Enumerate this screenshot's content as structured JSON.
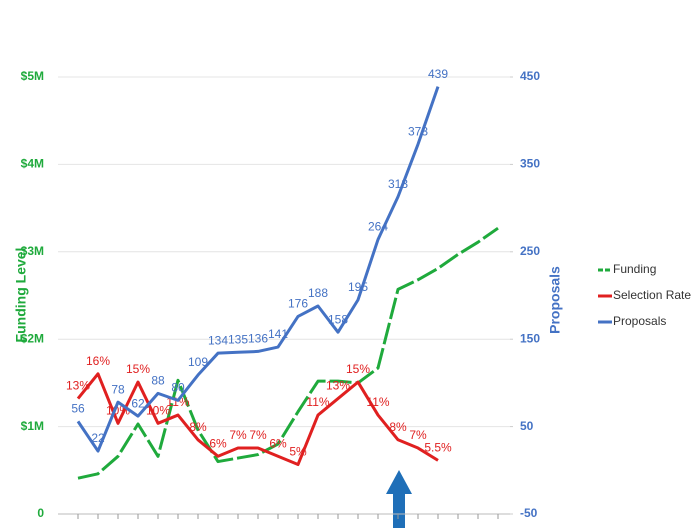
{
  "chart_data": {
    "type": "line",
    "y_label": "Funding Level",
    "y2_label": "Proposals",
    "categories": [
      null,
      null,
      null,
      null,
      null,
      null,
      null,
      null,
      null,
      null,
      null,
      null,
      null,
      null,
      null,
      null,
      null,
      null,
      null,
      null,
      null,
      null
    ],
    "ylim": [
      0,
      5
    ],
    "yticks": [
      0,
      {
        "value": 1,
        "label": "$1M"
      },
      {
        "value": 2,
        "label": "$2M"
      },
      {
        "value": 3,
        "label": "$3M"
      },
      {
        "value": 4,
        "label": "$4M"
      },
      {
        "value": 5,
        "label": "$5M"
      }
    ],
    "y2lim": [
      -50,
      450
    ],
    "y2ticks": [
      -50,
      50,
      150,
      250,
      350,
      450
    ],
    "y3lim": [
      -1,
      52
    ],
    "grid": true,
    "legend": "right",
    "series": [
      {
        "name": "Funding",
        "color": "#1faa3c",
        "dash": true,
        "values": [
          0.41,
          0.46,
          0.66,
          1.03,
          0.66,
          1.53,
          0.96,
          0.6,
          0.64,
          0.68,
          0.8,
          1.17,
          1.52,
          1.52,
          1.5,
          1.67,
          2.57,
          2.68,
          2.81,
          2.97,
          3.11,
          3.27
        ]
      },
      {
        "name": "Selection Rate",
        "color": "#e02020",
        "axis": "y3",
        "values": [
          13,
          16,
          10,
          15,
          10,
          11,
          8,
          6,
          7,
          7,
          6,
          5,
          11,
          13,
          15,
          11,
          8,
          7,
          5.5,
          null,
          null,
          null
        ],
        "value_labels": [
          "13%",
          "16%",
          "10%",
          "15%",
          "10%",
          "11%",
          "8%",
          "6%",
          "7%",
          "7%",
          "6%",
          "5%",
          "11%",
          "13%",
          "15%",
          "11%",
          "8%",
          "7%",
          "5.5%",
          null,
          null,
          null
        ]
      },
      {
        "name": "Proposals",
        "color": "#4472c4",
        "axis": "y2",
        "values": [
          56,
          22,
          78,
          62,
          88,
          80,
          109,
          134,
          135,
          136,
          141,
          176,
          188,
          158,
          195,
          264,
          313,
          373,
          439,
          null,
          null,
          null
        ]
      }
    ]
  }
}
